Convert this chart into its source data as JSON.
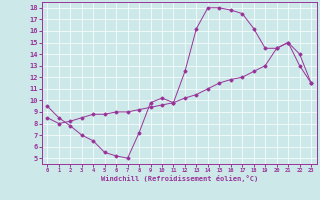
{
  "xlabel": "Windchill (Refroidissement éolien,°C)",
  "bg_color": "#cce8e8",
  "line_color": "#993399",
  "xlim": [
    -0.5,
    23.5
  ],
  "ylim": [
    4.5,
    18.5
  ],
  "xticks": [
    0,
    1,
    2,
    3,
    4,
    5,
    6,
    7,
    8,
    9,
    10,
    11,
    12,
    13,
    14,
    15,
    16,
    17,
    18,
    19,
    20,
    21,
    22,
    23
  ],
  "yticks": [
    5,
    6,
    7,
    8,
    9,
    10,
    11,
    12,
    13,
    14,
    15,
    16,
    17,
    18
  ],
  "line1_x": [
    0,
    1,
    2,
    3,
    4,
    5,
    6,
    7,
    8,
    9,
    10,
    11,
    12,
    13,
    14,
    15,
    16,
    17,
    18,
    19,
    20,
    21,
    22,
    23
  ],
  "line1_y": [
    9.5,
    8.5,
    7.8,
    7.0,
    6.5,
    5.5,
    5.2,
    5.0,
    7.2,
    9.8,
    10.2,
    9.8,
    12.5,
    16.2,
    18.0,
    18.0,
    17.8,
    17.5,
    16.2,
    14.5,
    14.5,
    15.0,
    13.0,
    11.5
  ],
  "line2_x": [
    0,
    1,
    2,
    3,
    4,
    5,
    6,
    7,
    8,
    9,
    10,
    11,
    12,
    13,
    14,
    15,
    16,
    17,
    18,
    19,
    20,
    21,
    22,
    23
  ],
  "line2_y": [
    8.5,
    8.0,
    8.2,
    8.5,
    8.8,
    8.8,
    9.0,
    9.0,
    9.2,
    9.4,
    9.6,
    9.8,
    10.2,
    10.5,
    11.0,
    11.5,
    11.8,
    12.0,
    12.5,
    13.0,
    14.5,
    15.0,
    14.0,
    11.5
  ]
}
